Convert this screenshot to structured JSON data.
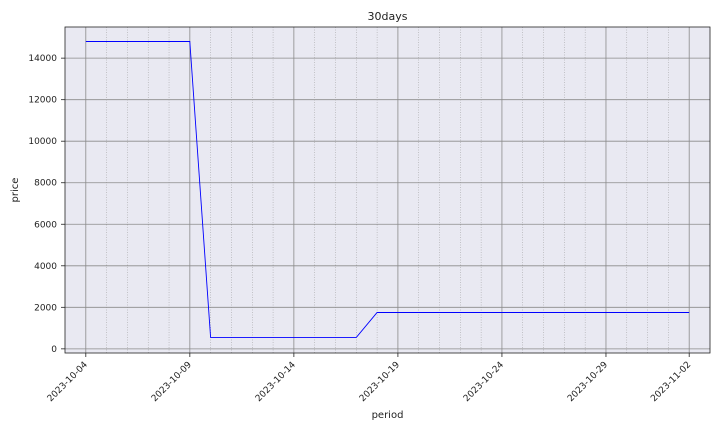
{
  "chart_data": {
    "type": "line",
    "title": "30days",
    "xlabel": "period",
    "ylabel": "price",
    "x_tick_labels": [
      "2023-10-04",
      "2023-10-09",
      "2023-10-14",
      "2023-10-19",
      "2023-10-24",
      "2023-10-29",
      "2023-11-02"
    ],
    "y_ticks": [
      0,
      2000,
      4000,
      6000,
      8000,
      10000,
      12000,
      14000
    ],
    "y_tick_labels": [
      "0",
      "2000",
      "4000",
      "6000",
      "8000",
      "10000",
      "12000",
      "14000"
    ],
    "ylim": [
      -200,
      15500
    ],
    "xlim": [
      "2023-10-03",
      "2023-11-03"
    ],
    "grid": "major solid, minor dotted",
    "background_color": "#e9e9f2",
    "series": [
      {
        "color": "#0000ff",
        "x": [
          "2023-10-04",
          "2023-10-05",
          "2023-10-06",
          "2023-10-07",
          "2023-10-08",
          "2023-10-09",
          "2023-10-10",
          "2023-10-11",
          "2023-10-12",
          "2023-10-13",
          "2023-10-14",
          "2023-10-15",
          "2023-10-16",
          "2023-10-17",
          "2023-10-18",
          "2023-10-19",
          "2023-10-20",
          "2023-10-21",
          "2023-10-22",
          "2023-10-23",
          "2023-10-24",
          "2023-10-25",
          "2023-10-26",
          "2023-10-27",
          "2023-10-28",
          "2023-10-29",
          "2023-10-30",
          "2023-10-31",
          "2023-11-01",
          "2023-11-02"
        ],
        "values": [
          14800,
          14800,
          14800,
          14800,
          14800,
          14800,
          550,
          550,
          550,
          550,
          550,
          550,
          550,
          550,
          1750,
          1750,
          1750,
          1750,
          1750,
          1750,
          1750,
          1750,
          1750,
          1750,
          1750,
          1750,
          1750,
          1750,
          1750,
          1750
        ]
      }
    ]
  }
}
